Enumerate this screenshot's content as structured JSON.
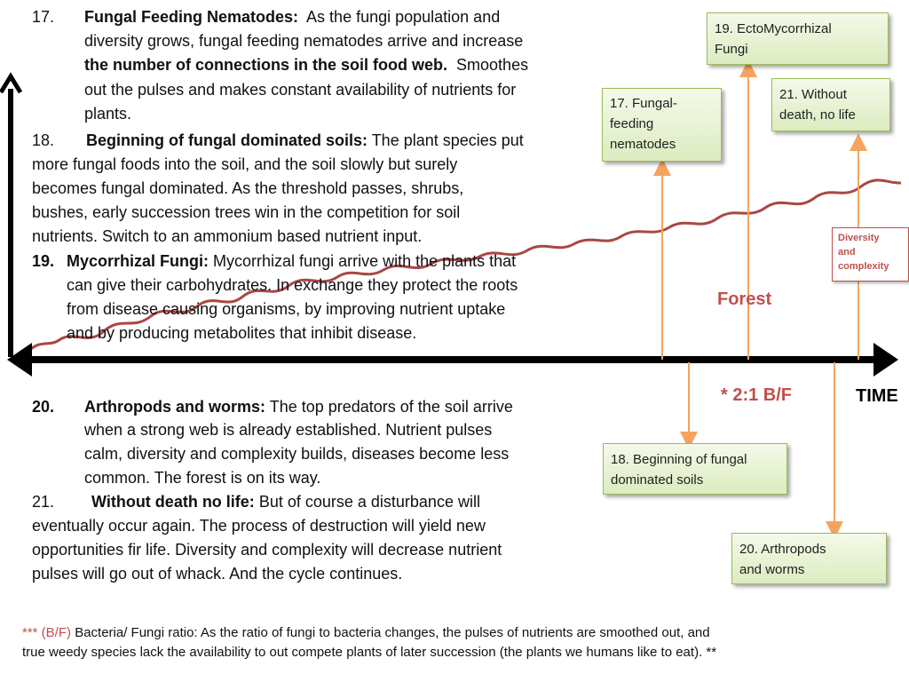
{
  "paragraphs": {
    "p17": {
      "num": "17.",
      "head": "Fungal Feeding Nematodes:",
      "l1": "As the fungi population and",
      "l2": "diversity grows, fungal feeding nematodes arrive and increase",
      "l3b": "the number of connections in the soil food web.",
      "l3": "Smoothes",
      "l4": "out the pulses and makes constant availability of nutrients for",
      "l5": "plants."
    },
    "p18": {
      "num": "18.",
      "head": "Beginning of fungal dominated soils:",
      "l1": "The plant species put",
      "l2": "more fungal foods into the soil, and the soil slowly but surely",
      "l3": "becomes fungal dominated. As the threshold passes, shrubs,",
      "l4": "bushes, early succession trees win in the competition for soil",
      "l5": "nutrients.  Switch to an ammonium based nutrient input."
    },
    "p19": {
      "num": "19.",
      "head": "Mycorrhizal Fungi:",
      "l1": "Mycorrhizal fungi arrive with the plants that",
      "l2": "can give their carbohydrates. In exchange they protect the roots",
      "l3": "from disease causing organisms, by improving nutrient uptake",
      "l4": "and by producing metabolites that inhibit disease."
    },
    "p20": {
      "num": "20.",
      "head": "Arthropods and worms:",
      "l1": "The top predators of the soil arrive",
      "l2": "when a strong web is already established. Nutrient pulses",
      "l3": "calm, diversity and complexity builds, diseases become less",
      "l4": "common. The forest is on its way."
    },
    "p21": {
      "num": "21.",
      "head": "Without death no life:",
      "l1": "But of course a disturbance will",
      "l2": "eventually occur again. The process of destruction will yield new",
      "l3": "opportunities fir life. Diversity and complexity will decrease nutrient",
      "l4": "pulses will go out of whack. And the cycle continues."
    }
  },
  "footnote": {
    "prefix": "*** (B/F)",
    "l1": "Bacteria/ Fungi ratio:  As the ratio of fungi to bacteria changes, the pulses of nutrients are smoothed out, and",
    "l2": "true weedy species lack the availability to out compete plants of later succession (the plants we humans like to eat). **"
  },
  "diagram": {
    "box17": [
      "17. Fungal-",
      "feeding",
      "nematodes"
    ],
    "box18": [
      "18. Beginning of fungal",
      "dominated soils"
    ],
    "box19": [
      "19. EctoMycorrhizal",
      "Fungi"
    ],
    "box20": [
      "20. Arthropods",
      "and worms"
    ],
    "box21": [
      "21. Without",
      "death, no life"
    ],
    "diversity": [
      "Diversity",
      "and",
      "complexity"
    ],
    "forest": "Forest",
    "ratio": "* 2:1 B/F",
    "time": "TIME"
  },
  "colors": {
    "curve": "#a94744",
    "arrow": "#f4a460",
    "red_text": "#c0504d",
    "box_border": "#9bbb59"
  }
}
